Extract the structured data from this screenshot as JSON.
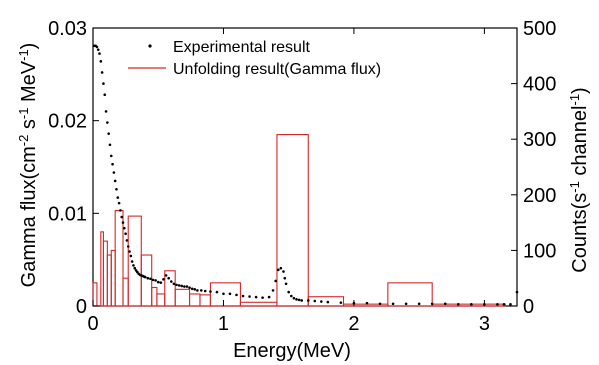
{
  "chart_data": {
    "type": "line",
    "xlabel": "Energy(MeV)",
    "ylabel_left": "Gamma flux(cm^-2 s^-1 MeV^-1)",
    "ylabel_right": "Counts(s^-1 channel^-1)",
    "xlim": [
      0,
      3.25
    ],
    "ylim_left": [
      0,
      0.03
    ],
    "ylim_right": [
      0,
      500
    ],
    "x_ticks": [
      0,
      1,
      2,
      3
    ],
    "y_left_ticks": [
      0,
      0.01,
      0.02,
      0.03
    ],
    "y_right_ticks": [
      0,
      100,
      200,
      300,
      400,
      500
    ],
    "legend": {
      "position": "top-right",
      "entries": [
        "Experimental result",
        "Unfolding result(Gamma flux)"
      ]
    },
    "series": [
      {
        "name": "Experimental result",
        "axis": "right",
        "style": "dots",
        "color": "#000000",
        "x": [
          0.01,
          0.02,
          0.03,
          0.04,
          0.05,
          0.06,
          0.07,
          0.08,
          0.09,
          0.1,
          0.11,
          0.12,
          0.13,
          0.14,
          0.15,
          0.16,
          0.17,
          0.18,
          0.19,
          0.2,
          0.21,
          0.22,
          0.23,
          0.24,
          0.25,
          0.26,
          0.27,
          0.28,
          0.29,
          0.3,
          0.31,
          0.32,
          0.33,
          0.34,
          0.35,
          0.36,
          0.37,
          0.38,
          0.39,
          0.4,
          0.42,
          0.44,
          0.46,
          0.48,
          0.5,
          0.52,
          0.54,
          0.56,
          0.58,
          0.6,
          0.62,
          0.64,
          0.66,
          0.68,
          0.7,
          0.72,
          0.74,
          0.76,
          0.78,
          0.8,
          0.83,
          0.86,
          0.9,
          0.95,
          1.0,
          1.05,
          1.1,
          1.15,
          1.2,
          1.25,
          1.3,
          1.35,
          1.38,
          1.4,
          1.42,
          1.44,
          1.46,
          1.47,
          1.48,
          1.5,
          1.52,
          1.54,
          1.56,
          1.58,
          1.6,
          1.65,
          1.7,
          1.75,
          1.8,
          1.9,
          2.0,
          2.1,
          2.2,
          2.3,
          2.4,
          2.5,
          2.6,
          2.7,
          2.8,
          2.9,
          3.0,
          3.1,
          3.15,
          3.2,
          3.25
        ],
        "y": [
          468,
          468,
          466,
          461,
          454,
          440,
          420,
          400,
          380,
          350,
          330,
          310,
          290,
          270,
          255,
          240,
          225,
          210,
          195,
          185,
          172,
          160,
          150,
          140,
          130,
          118,
          107,
          98,
          90,
          80,
          73,
          68,
          64,
          61,
          58,
          56,
          55,
          54,
          53,
          52,
          50,
          49,
          47,
          46,
          43,
          42,
          48,
          55,
          50,
          44,
          40,
          38,
          37,
          36,
          35,
          35,
          33,
          31,
          30,
          28,
          28,
          27,
          26,
          25,
          22,
          22,
          20,
          18,
          17,
          16,
          15,
          16,
          28,
          45,
          65,
          68,
          62,
          50,
          40,
          25,
          18,
          14,
          12,
          11,
          10,
          10,
          9,
          8,
          7,
          6,
          5,
          5,
          4,
          4,
          4,
          4,
          4,
          4,
          3,
          3,
          3,
          3,
          3,
          3,
          25
        ]
      },
      {
        "name": "Unfolding result(Gamma flux)",
        "axis": "left",
        "style": "histogram",
        "color": "#d62728",
        "bins": [
          {
            "x0": 0.0,
            "x1": 0.03,
            "value": 0.0025
          },
          {
            "x0": 0.06,
            "x1": 0.08,
            "value": 0.008
          },
          {
            "x0": 0.08,
            "x1": 0.11,
            "value": 0.007
          },
          {
            "x0": 0.11,
            "x1": 0.14,
            "value": 0.0055
          },
          {
            "x0": 0.14,
            "x1": 0.17,
            "value": 0.006
          },
          {
            "x0": 0.17,
            "x1": 0.23,
            "value": 0.0103
          },
          {
            "x0": 0.23,
            "x1": 0.27,
            "value": 0.003
          },
          {
            "x0": 0.27,
            "x1": 0.37,
            "value": 0.0097
          },
          {
            "x0": 0.37,
            "x1": 0.45,
            "value": 0.0055
          },
          {
            "x0": 0.45,
            "x1": 0.49,
            "value": 0.002
          },
          {
            "x0": 0.49,
            "x1": 0.55,
            "value": 0.0013
          },
          {
            "x0": 0.55,
            "x1": 0.63,
            "value": 0.0038
          },
          {
            "x0": 0.63,
            "x1": 0.74,
            "value": 0.0018
          },
          {
            "x0": 0.74,
            "x1": 0.82,
            "value": 0.0013
          },
          {
            "x0": 0.82,
            "x1": 0.9,
            "value": 0.0012
          },
          {
            "x0": 0.9,
            "x1": 1.13,
            "value": 0.0025
          },
          {
            "x0": 1.13,
            "x1": 1.41,
            "value": 0.0004
          },
          {
            "x0": 1.41,
            "x1": 1.65,
            "value": 0.0185
          },
          {
            "x0": 1.65,
            "x1": 1.92,
            "value": 0.001
          },
          {
            "x0": 1.92,
            "x1": 2.26,
            "value": 0.0002
          },
          {
            "x0": 2.26,
            "x1": 2.6,
            "value": 0.0025
          },
          {
            "x0": 2.6,
            "x1": 3.16,
            "value": 0.0002
          }
        ]
      }
    ]
  }
}
